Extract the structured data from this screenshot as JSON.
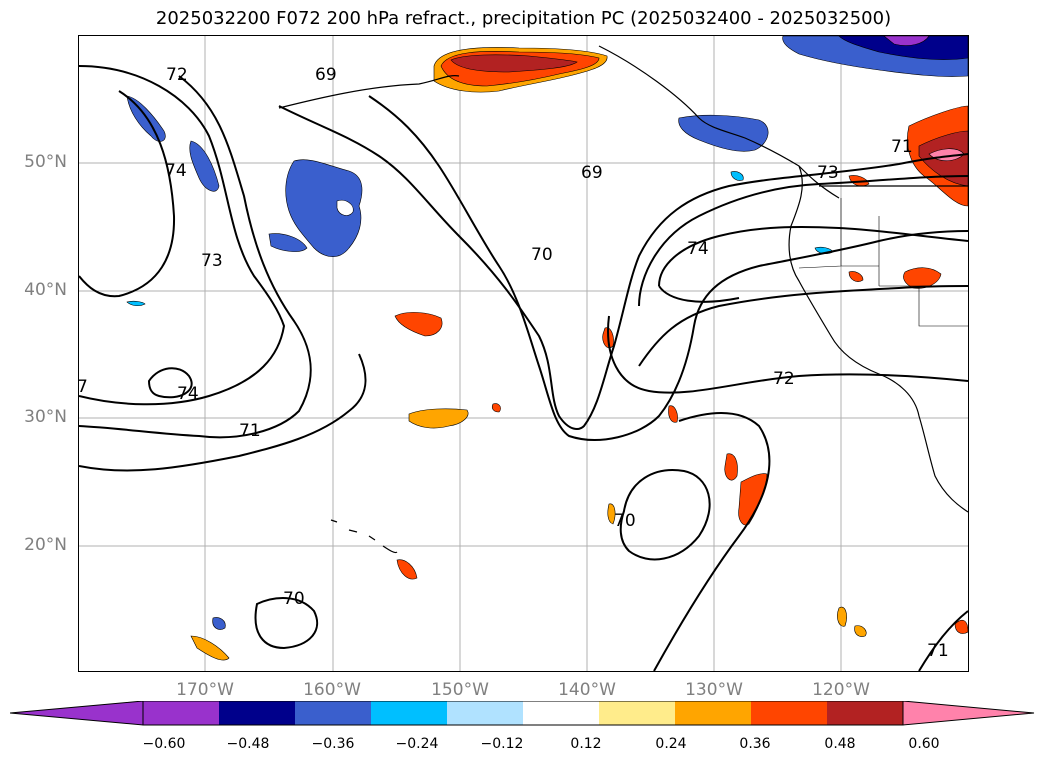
{
  "title": "2025032200 F072 200 hPa refract., precipitation PC (2025032400 - 2025032500)",
  "lat_labels": [
    "50°N",
    "40°N",
    "30°N",
    "20°N"
  ],
  "lon_labels": [
    "170°W",
    "160°W",
    "150°W",
    "140°W",
    "130°W",
    "120°W"
  ],
  "contour_labels": [
    "72",
    "74",
    "73",
    "74",
    "71",
    "69",
    "69",
    "70",
    "74",
    "71",
    "73",
    "72",
    "70",
    "70",
    "71",
    "7"
  ],
  "colorbar": {
    "ticks": [
      "−0.60",
      "−0.48",
      "−0.36",
      "−0.24",
      "−0.12",
      "0.12",
      "0.24",
      "0.36",
      "0.48",
      "0.60"
    ],
    "colors": {
      "under": "#9932cc",
      "bins": [
        "#9932cc",
        "#00008b",
        "#3a5fcd",
        "#00bfff",
        "#b0e2ff",
        "#ffffff",
        "#ffec8b",
        "#ffa500",
        "#ff4500",
        "#b22222"
      ],
      "over": "#ff82ab"
    }
  }
}
